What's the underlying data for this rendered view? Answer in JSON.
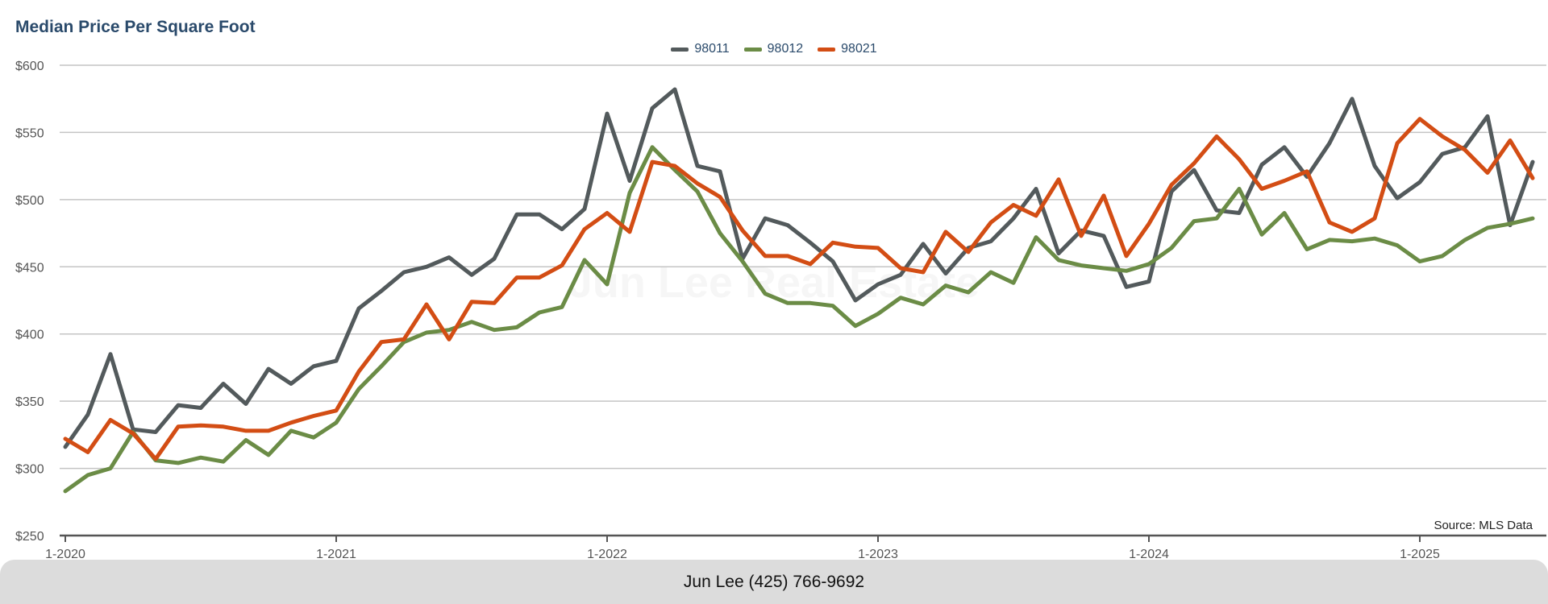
{
  "header": {
    "title": "Median Price Per Square Foot"
  },
  "watermark": "Jun Lee Real Estate",
  "source": "Source: MLS Data",
  "footer": {
    "contact": "Jun Lee (425) 766-9692"
  },
  "colors": {
    "98011": "#535a5c",
    "98012": "#6b8c46",
    "98021": "#d34d14",
    "grid": "#c4c4c4",
    "axis": "#555555"
  },
  "chart_data": {
    "type": "line",
    "title": "Median Price Per Square Foot",
    "ylim": [
      250,
      600
    ],
    "yticks": [
      250,
      300,
      350,
      400,
      450,
      500,
      550,
      600
    ],
    "ytick_labels": [
      "$250",
      "$300",
      "$350",
      "$400",
      "$450",
      "$500",
      "$550",
      "$600"
    ],
    "xticks": [
      0,
      12,
      24,
      36,
      48,
      60
    ],
    "xtick_labels": [
      "1-2020",
      "1-2021",
      "1-2022",
      "1-2023",
      "1-2024",
      "1-2025"
    ],
    "x_start": "2020-01",
    "x_end": "2025-06",
    "grid": true,
    "legend_position": "top-center",
    "series": [
      {
        "name": "98011",
        "color": "#535a5c",
        "values": [
          316,
          340,
          385,
          329,
          327,
          347,
          345,
          363,
          348,
          374,
          363,
          376,
          380,
          419,
          432,
          446,
          450,
          457,
          444,
          456,
          489,
          489,
          478,
          493,
          564,
          514,
          568,
          582,
          525,
          521,
          456,
          486,
          481,
          468,
          454,
          425,
          437,
          444,
          467,
          445,
          464,
          469,
          486,
          508,
          460,
          477,
          473,
          435,
          439,
          506,
          522,
          492,
          490,
          526,
          539,
          517,
          542,
          575,
          525,
          501,
          513,
          534,
          539,
          562,
          481,
          528
        ]
      },
      {
        "name": "98012",
        "color": "#6b8c46",
        "values": [
          283,
          295,
          300,
          327,
          306,
          304,
          308,
          305,
          321,
          310,
          328,
          323,
          334,
          359,
          376,
          394,
          401,
          403,
          409,
          403,
          405,
          416,
          420,
          455,
          437,
          505,
          539,
          522,
          506,
          475,
          454,
          430,
          423,
          423,
          421,
          406,
          415,
          427,
          422,
          436,
          431,
          446,
          438,
          472,
          455,
          451,
          449,
          447,
          452,
          464,
          484,
          486,
          508,
          474,
          490,
          463,
          470,
          469,
          471,
          466,
          454,
          458,
          470,
          479,
          482,
          486
        ]
      },
      {
        "name": "98021",
        "color": "#d34d14",
        "values": [
          322,
          312,
          336,
          326,
          307,
          331,
          332,
          331,
          328,
          328,
          334,
          339,
          343,
          372,
          394,
          396,
          422,
          396,
          424,
          423,
          442,
          442,
          451,
          478,
          490,
          476,
          528,
          525,
          512,
          502,
          477,
          458,
          458,
          452,
          468,
          465,
          464,
          449,
          446,
          476,
          461,
          483,
          496,
          488,
          515,
          473,
          503,
          458,
          482,
          511,
          527,
          547,
          530,
          508,
          514,
          521,
          483,
          476,
          486,
          542,
          560,
          547,
          537,
          520,
          544,
          516
        ]
      }
    ]
  }
}
